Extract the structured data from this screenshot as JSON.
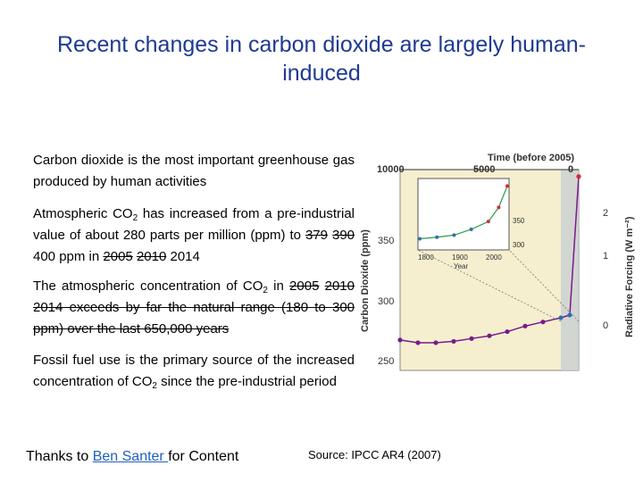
{
  "slide": {
    "title": "Recent changes in carbon dioxide are largely human-induced",
    "bullet1": "Carbon dioxide is the most important greenhouse gas produced by human activities",
    "bullet2": {
      "pre": "Atmospheric CO",
      "sub": "2",
      "mid": " has increased from a pre-industrial value of about 280 parts per million (ppm) to ",
      "strike1": "379",
      "strike2": "390",
      "val": "400 ppm in",
      "strike3": "2005",
      "strike4": "2010",
      "year": "2014"
    },
    "bullet3": {
      "pre": "The atmospheric concentration of CO",
      "sub": "2",
      "mid": " in ",
      "strike1": "2005",
      "strike2": "2010",
      "rest": "2014 exceeds by far the natural range (180 to 300 ppm) over the last 650,000 years"
    },
    "bullet4": {
      "pre": "Fossil fuel use is the primary source of the increased concentration of CO",
      "sub": "2",
      "rest": " since the pre-industrial period"
    },
    "credit": {
      "pre": "Thanks to ",
      "name": "Ben Santer ",
      "post": "for Content"
    },
    "source": "Source: IPCC AR4 (2007)"
  },
  "chart_data": {
    "type": "line",
    "title": "Time (before 2005)",
    "top_axis_ticks": [
      "10000",
      "5000",
      "0"
    ],
    "ylabel": "Carbon Dioxide (ppm)",
    "y_ticks": [
      "250",
      "300",
      "350"
    ],
    "ylim": [
      240,
      385
    ],
    "right_label": "Radiative Forcing (W m⁻²)",
    "right_ticks": [
      "0",
      "1",
      "2"
    ],
    "colors": {
      "panel": "#f5efd0",
      "ice_core_old": "#7a1a8c",
      "ice_core_mid": "#2f6fb0",
      "ice_core_green": "#2e9a4a",
      "instrumental": "#d42a3a"
    },
    "series": [
      {
        "x": [
          10000,
          9000,
          8000,
          7000,
          6000,
          5000,
          4000,
          3000,
          2000,
          1000,
          500,
          0
        ],
        "y": [
          262,
          260,
          260,
          261,
          263,
          265,
          268,
          272,
          275,
          278,
          280,
          380
        ]
      }
    ],
    "inset": {
      "x_ticks": [
        "1800",
        "1900",
        "2000"
      ],
      "xlabel": "Year",
      "y_ticks": [
        "300",
        "350"
      ],
      "x": [
        1750,
        1800,
        1850,
        1900,
        1950,
        1980,
        2005
      ],
      "y": [
        278,
        281,
        285,
        296,
        311,
        338,
        379
      ]
    }
  }
}
